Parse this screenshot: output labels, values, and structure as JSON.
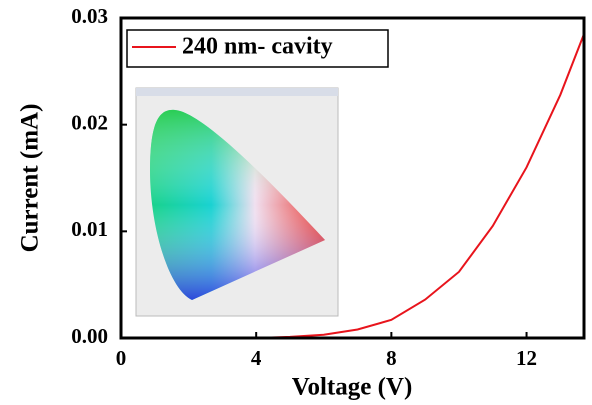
{
  "chart_data": {
    "type": "line",
    "xlabel": "Voltage (V)",
    "ylabel": "Current (mA)",
    "x": [
      0,
      1,
      2,
      3,
      4,
      5,
      6,
      7,
      8,
      9,
      10,
      11,
      12,
      13,
      13.7
    ],
    "series": [
      {
        "name": "240 nm- cavity",
        "color": "#e8141c",
        "values": [
          0,
          0,
          0,
          0,
          0,
          0.0001,
          0.0003,
          0.0008,
          0.0017,
          0.0036,
          0.0062,
          0.0105,
          0.016,
          0.0228,
          0.0285
        ]
      }
    ],
    "xlim": [
      0,
      13.7
    ],
    "xticks": [
      0,
      4,
      8,
      12
    ],
    "ylim": [
      0,
      0.03
    ],
    "yticks": [
      {
        "value": 0,
        "label": "0.00"
      },
      0.01,
      0.02,
      0.03
    ],
    "legend": "upper left"
  }
}
